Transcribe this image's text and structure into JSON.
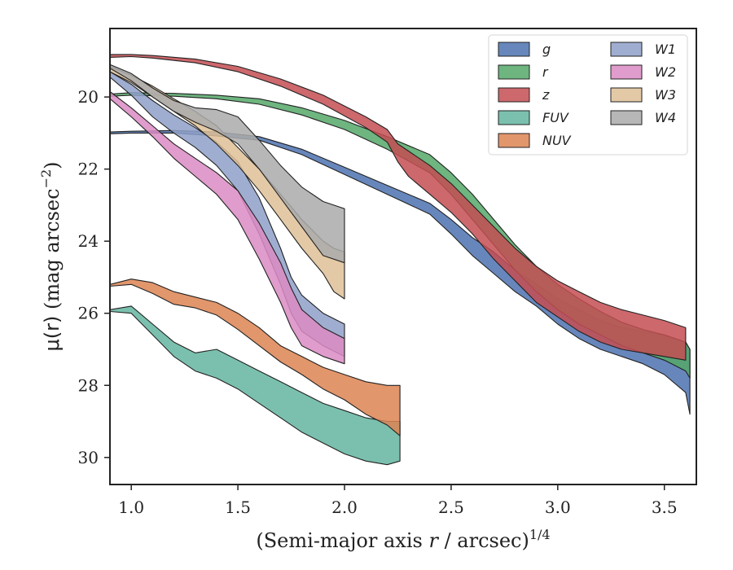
{
  "chart_data": {
    "type": "area",
    "xlabel": "(Semi-major axis",
    "xlabel_var": "r",
    "xlabel_unit": "/ arcsec)",
    "xlabel_exp": "1/4",
    "ylabel_sym": "μ(r)",
    "ylabel_unit": "(mag arcsec",
    "ylabel_exp": "−2",
    "ylabel_close": ")",
    "xlim": [
      0.9,
      3.65
    ],
    "ylim": [
      30.75,
      18.1
    ],
    "y_inverted": true,
    "xticks": [
      1.0,
      1.5,
      2.0,
      2.5,
      3.0,
      3.5
    ],
    "xtick_labels": [
      "1.0",
      "1.5",
      "2.0",
      "2.5",
      "3.0",
      "3.5"
    ],
    "yticks": [
      20,
      22,
      24,
      26,
      28,
      30
    ],
    "ytick_labels": [
      "20",
      "22",
      "24",
      "26",
      "28",
      "30"
    ],
    "grid": false,
    "legend_position": "top-right",
    "legend_columns": 2,
    "series": [
      {
        "name": "g",
        "color": "#4C72B0",
        "x": [
          0.9,
          1.0,
          1.2,
          1.4,
          1.6,
          1.8,
          2.0,
          2.2,
          2.4,
          2.5,
          2.6,
          2.7,
          2.8,
          2.9,
          3.0,
          3.1,
          3.2,
          3.3,
          3.4,
          3.5,
          3.6,
          3.62
        ],
        "y_upper": [
          20.97,
          20.95,
          20.93,
          20.97,
          21.1,
          21.45,
          21.95,
          22.45,
          22.95,
          23.4,
          23.9,
          24.3,
          24.8,
          25.2,
          25.6,
          25.9,
          26.2,
          26.4,
          26.5,
          26.6,
          26.8,
          27.0
        ],
        "y_lower": [
          21.02,
          21.0,
          21.0,
          21.08,
          21.2,
          21.6,
          22.15,
          22.7,
          23.25,
          23.8,
          24.4,
          24.9,
          25.4,
          25.8,
          26.3,
          26.7,
          27.0,
          27.2,
          27.4,
          27.7,
          28.2,
          28.8
        ]
      },
      {
        "name": "r",
        "color": "#55A868",
        "x": [
          0.9,
          1.0,
          1.2,
          1.4,
          1.6,
          1.8,
          2.0,
          2.2,
          2.4,
          2.5,
          2.6,
          2.7,
          2.8,
          2.9,
          3.0,
          3.1,
          3.2,
          3.3,
          3.4,
          3.5,
          3.6,
          3.62
        ],
        "y_upper": [
          19.92,
          19.88,
          19.9,
          19.95,
          20.05,
          20.3,
          20.65,
          21.1,
          21.6,
          22.1,
          22.7,
          23.4,
          24.1,
          24.7,
          25.2,
          25.6,
          25.95,
          26.25,
          26.45,
          26.6,
          26.8,
          27.0
        ],
        "y_lower": [
          19.98,
          19.95,
          19.98,
          20.05,
          20.2,
          20.5,
          20.9,
          21.45,
          22.1,
          22.7,
          23.4,
          24.1,
          24.8,
          25.4,
          25.9,
          26.3,
          26.6,
          26.9,
          27.1,
          27.3,
          27.6,
          27.8
        ]
      },
      {
        "name": "z",
        "color": "#C44E52",
        "x": [
          0.9,
          1.0,
          1.1,
          1.3,
          1.5,
          1.7,
          1.9,
          2.1,
          2.2,
          2.25,
          2.3,
          2.4,
          2.5,
          2.6,
          2.7,
          2.8,
          2.9,
          3.0,
          3.1,
          3.2,
          3.3,
          3.4,
          3.5,
          3.6
        ],
        "y_upper": [
          18.82,
          18.82,
          18.85,
          18.95,
          19.15,
          19.5,
          19.95,
          20.55,
          20.9,
          21.3,
          21.5,
          21.9,
          22.4,
          23.0,
          23.6,
          24.2,
          24.7,
          25.1,
          25.4,
          25.7,
          25.9,
          26.05,
          26.2,
          26.4
        ],
        "y_lower": [
          18.9,
          18.88,
          18.92,
          19.05,
          19.3,
          19.7,
          20.2,
          20.85,
          21.25,
          21.8,
          22.2,
          22.7,
          23.2,
          23.8,
          24.5,
          25.1,
          25.7,
          26.1,
          26.5,
          26.8,
          27.0,
          27.1,
          27.2,
          27.3
        ]
      },
      {
        "name": "FUV",
        "color": "#64B5A0",
        "x": [
          0.9,
          1.0,
          1.1,
          1.2,
          1.3,
          1.4,
          1.5,
          1.6,
          1.7,
          1.8,
          1.9,
          2.0,
          2.1,
          2.2,
          2.26
        ],
        "y_upper": [
          25.9,
          25.8,
          26.3,
          26.8,
          27.1,
          27.0,
          27.3,
          27.6,
          27.9,
          28.2,
          28.5,
          28.7,
          28.9,
          29.0,
          29.0
        ],
        "y_lower": [
          25.95,
          26.0,
          26.6,
          27.2,
          27.6,
          27.8,
          28.1,
          28.5,
          28.9,
          29.3,
          29.6,
          29.9,
          30.1,
          30.2,
          30.1
        ]
      },
      {
        "name": "NUV",
        "color": "#DD8452",
        "x": [
          0.9,
          1.0,
          1.1,
          1.2,
          1.3,
          1.4,
          1.5,
          1.6,
          1.7,
          1.8,
          1.9,
          2.0,
          2.1,
          2.2,
          2.26
        ],
        "y_upper": [
          25.2,
          25.05,
          25.15,
          25.4,
          25.55,
          25.7,
          26.0,
          26.4,
          26.9,
          27.2,
          27.5,
          27.7,
          27.9,
          28.0,
          28.0
        ],
        "y_lower": [
          25.25,
          25.2,
          25.45,
          25.75,
          25.85,
          26.05,
          26.45,
          26.9,
          27.35,
          27.7,
          28.1,
          28.4,
          28.8,
          29.1,
          29.4
        ]
      },
      {
        "name": "W1",
        "color": "#8EA0C8",
        "x": [
          0.9,
          1.0,
          1.1,
          1.2,
          1.3,
          1.4,
          1.5,
          1.6,
          1.7,
          1.75,
          1.8,
          1.9,
          2.0
        ],
        "y_upper": [
          19.3,
          19.65,
          20.1,
          20.5,
          20.85,
          21.25,
          21.8,
          22.8,
          24.2,
          25.0,
          25.5,
          26.0,
          26.3
        ],
        "y_lower": [
          19.45,
          19.95,
          20.55,
          21.0,
          21.4,
          21.9,
          22.6,
          23.8,
          25.2,
          26.0,
          26.5,
          26.9,
          27.2
        ]
      },
      {
        "name": "W2",
        "color": "#DA8BC3",
        "x": [
          0.9,
          1.0,
          1.1,
          1.2,
          1.3,
          1.4,
          1.5,
          1.6,
          1.7,
          1.75,
          1.8,
          1.9,
          2.0
        ],
        "y_upper": [
          19.85,
          20.3,
          20.8,
          21.3,
          21.7,
          22.1,
          22.6,
          23.5,
          24.6,
          25.3,
          25.9,
          26.4,
          26.7
        ],
        "y_lower": [
          20.05,
          20.55,
          21.1,
          21.7,
          22.2,
          22.7,
          23.4,
          24.5,
          25.7,
          26.4,
          26.9,
          27.2,
          27.4
        ]
      },
      {
        "name": "W3",
        "color": "#DEC096",
        "x": [
          0.9,
          1.0,
          1.1,
          1.2,
          1.3,
          1.4,
          1.5,
          1.6,
          1.7,
          1.8,
          1.9,
          1.95,
          2.0
        ],
        "y_upper": [
          19.15,
          19.4,
          19.7,
          20.05,
          20.4,
          20.8,
          21.4,
          22.0,
          22.7,
          23.4,
          24.0,
          24.2,
          24.3
        ],
        "y_lower": [
          19.3,
          19.6,
          20.0,
          20.4,
          20.8,
          21.3,
          21.9,
          22.6,
          23.4,
          24.2,
          24.9,
          25.4,
          25.6
        ]
      },
      {
        "name": "W4",
        "color": "#AAAAAA",
        "x": [
          0.9,
          1.0,
          1.1,
          1.2,
          1.3,
          1.4,
          1.5,
          1.6,
          1.7,
          1.8,
          1.9,
          2.0
        ],
        "y_upper": [
          19.1,
          19.35,
          19.75,
          20.1,
          20.3,
          20.35,
          20.55,
          21.2,
          21.9,
          22.5,
          22.9,
          23.1
        ],
        "y_lower": [
          19.2,
          19.55,
          20.0,
          20.4,
          20.7,
          20.95,
          21.3,
          22.0,
          22.8,
          23.6,
          24.4,
          24.6
        ]
      }
    ]
  }
}
